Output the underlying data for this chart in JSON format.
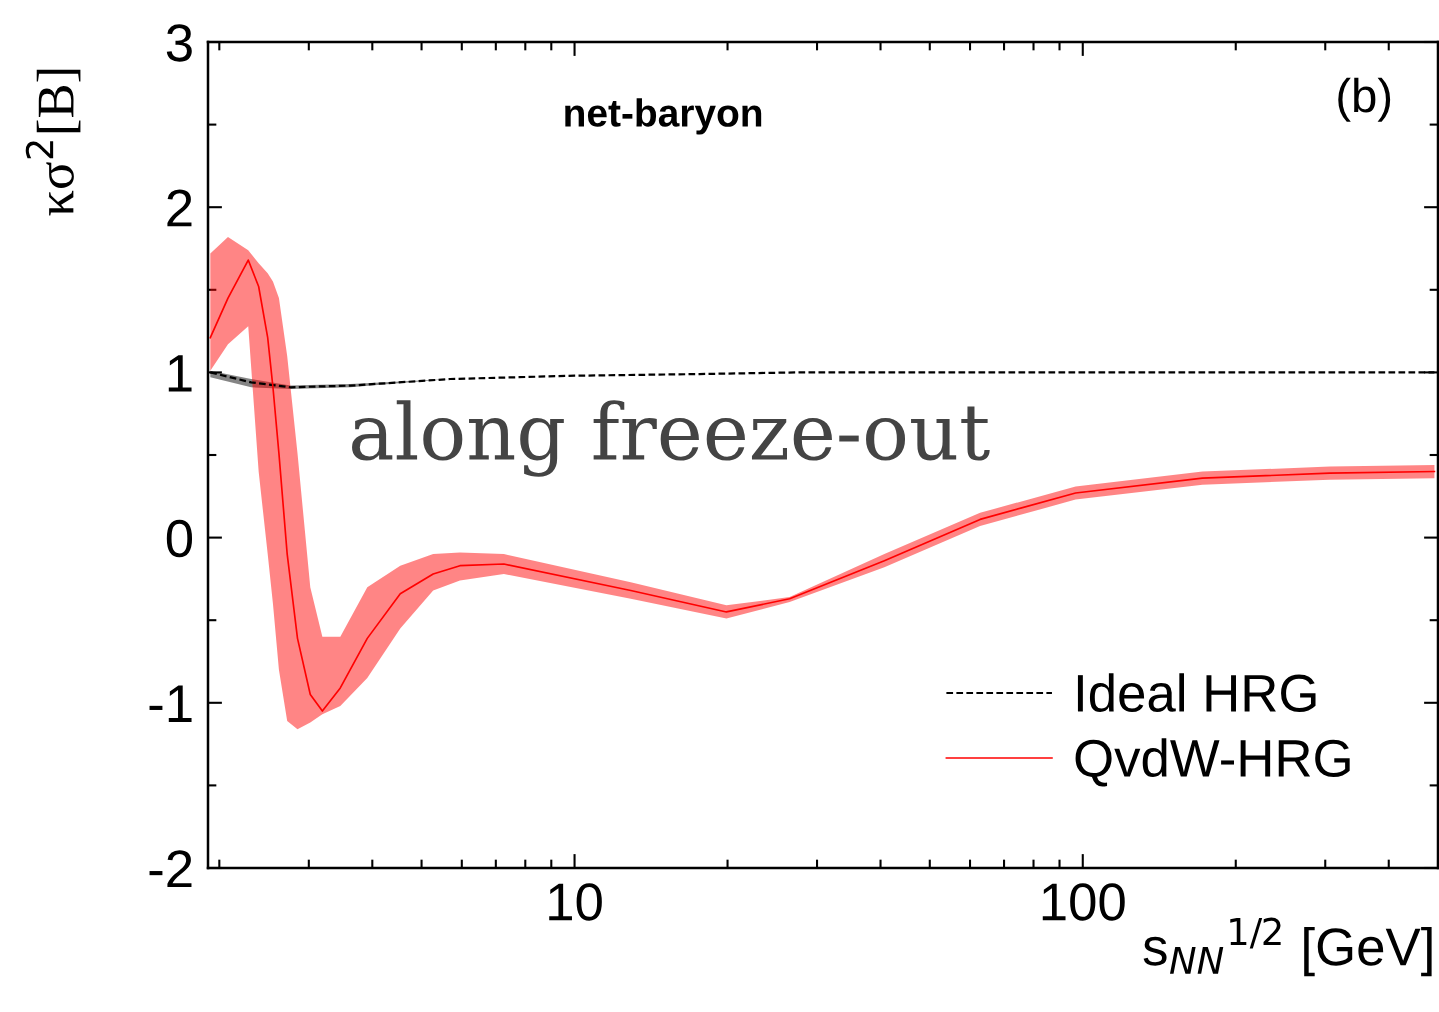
{
  "chart_data": {
    "type": "line",
    "ylabel": "κσ$^{2}$[B]",
    "xlabel": "s$_{NN}$$^{1/2}$ [GeV]",
    "annotations": [
      "net-baryon",
      "(b)",
      "along freeze-out"
    ],
    "log": "x",
    "xlim": [
      1.9,
      500
    ],
    "xticks": [
      10,
      100
    ],
    "ylim": [
      -2,
      3
    ],
    "yticks": [
      -2,
      -1,
      0,
      1,
      2,
      3
    ],
    "grid": false,
    "legend": "bottom right",
    "marker": "none",
    "series": [
      {
        "name": "Ideal HRG",
        "color": "#000000",
        "line_style": "dashed",
        "x": [
          1.92,
          2.31,
          2.76,
          3.62,
          5.69,
          10,
          17.6,
          27.6,
          492
        ],
        "values": [
          1.0,
          0.94,
          0.91,
          0.92,
          0.96,
          0.98,
          0.99,
          1.0,
          1.0
        ],
        "lower": [
          0.97,
          0.91,
          0.9,
          0.91,
          0.96,
          0.98,
          0.99,
          1.0,
          1.0
        ],
        "upper": [
          1.01,
          0.96,
          0.92,
          0.93,
          0.96,
          0.98,
          0.99,
          1.0,
          1.0
        ]
      },
      {
        "name": "QvdW-HRG",
        "color": "#ff0000",
        "line_style": "solid",
        "x": [
          1.92,
          2.08,
          2.28,
          2.39,
          2.49,
          2.55,
          2.62,
          2.72,
          2.85,
          3.02,
          3.19,
          3.46,
          3.91,
          4.54,
          5.27,
          5.95,
          7.26,
          12.9,
          19.9,
          26.5,
          40.7,
          62.8,
          96.8,
          172,
          306,
          492
        ],
        "values": [
          1.21,
          1.45,
          1.68,
          1.52,
          1.21,
          0.91,
          0.51,
          -0.1,
          -0.61,
          -0.95,
          -1.05,
          -0.91,
          -0.61,
          -0.34,
          -0.22,
          -0.17,
          -0.16,
          -0.32,
          -0.45,
          -0.37,
          -0.14,
          0.11,
          0.27,
          0.36,
          0.39,
          0.4
        ],
        "lower": [
          1.01,
          1.17,
          1.28,
          0.4,
          -0.1,
          -0.4,
          -0.8,
          -1.11,
          -1.16,
          -1.12,
          -1.07,
          -1.02,
          -0.85,
          -0.55,
          -0.32,
          -0.26,
          -0.22,
          -0.37,
          -0.49,
          -0.39,
          -0.18,
          0.07,
          0.23,
          0.32,
          0.35,
          0.36
        ],
        "upper": [
          1.72,
          1.82,
          1.74,
          1.66,
          1.6,
          1.55,
          1.45,
          1.1,
          0.51,
          -0.3,
          -0.6,
          -0.6,
          -0.3,
          -0.17,
          -0.1,
          -0.09,
          -0.1,
          -0.27,
          -0.41,
          -0.36,
          -0.1,
          0.15,
          0.31,
          0.4,
          0.43,
          0.44
        ]
      }
    ]
  }
}
